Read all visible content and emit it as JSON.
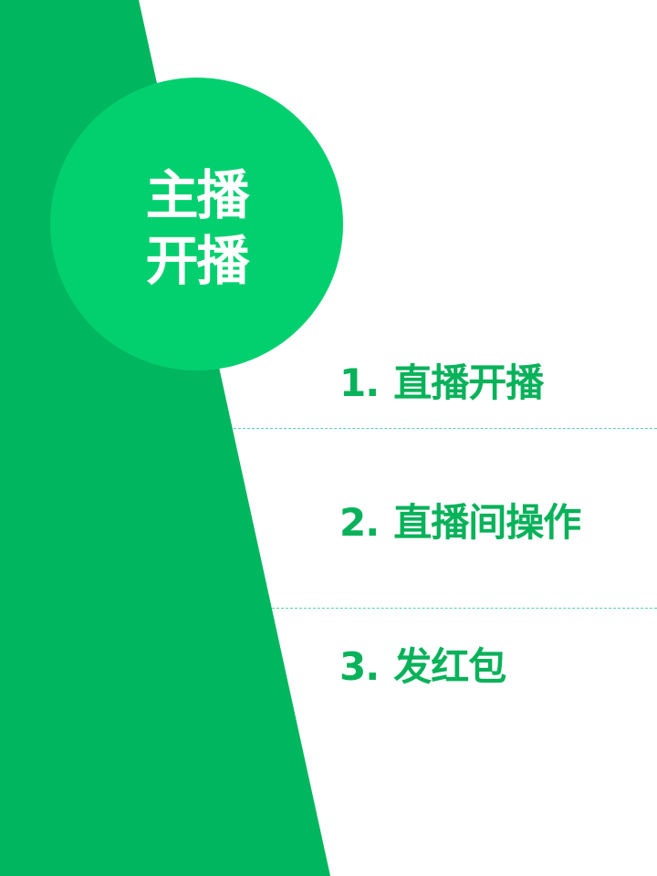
{
  "colors": {
    "background": "#ffffff",
    "dark_green": "#00b65e",
    "circle_green": "#02d06f",
    "text_green": "#08b25a",
    "divider": "#58d1a0",
    "title_text": "#ffffff"
  },
  "circle": {
    "line1": "主播",
    "line2": "开播"
  },
  "menu": [
    {
      "number": "1.",
      "label": "直播开播"
    },
    {
      "number": "2.",
      "label": "直播间操作"
    },
    {
      "number": "3.",
      "label": "发红包"
    }
  ]
}
